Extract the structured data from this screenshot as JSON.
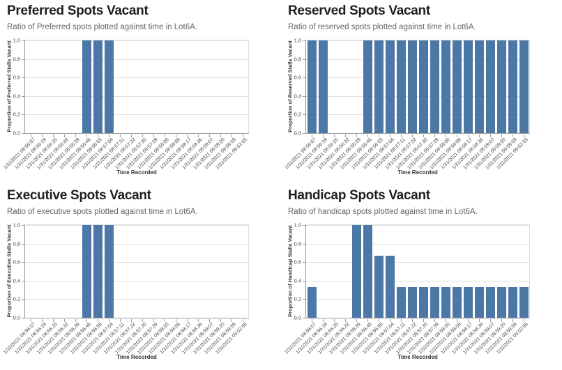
{
  "colors": {
    "bar": "#4c78a8",
    "grid": "#e2e2e2",
    "axis": "#999999"
  },
  "xlabel": "Time Recorded",
  "chart_data": [
    {
      "type": "bar",
      "title": "Preferred Spots Vacant",
      "subtitle": "Ratio of Preferred spots plotted against time in Lot6A.",
      "xlabel": "Time Recorded",
      "ylabel": "Proportion of Preferred Stalls Vacant",
      "ylim": [
        0,
        1
      ],
      "grid": true,
      "legend": false,
      "yticks": [
        "1.0",
        "0.8",
        "0.6",
        "0.4",
        "0.2",
        "0.0"
      ],
      "categories": [
        "1/31/2021 08:56:07",
        "1/31/2021 08:56:18",
        "1/31/2021 08:56:25",
        "1/31/2021 08:56:32",
        "1/31/2021 08:56:39",
        "1/31/2021 08:56:46",
        "1/31/2021 08:56:55",
        "1/31/2021 08:57:04",
        "1/31/2021 08:57:11",
        "1/31/2021 08:57:22",
        "1/31/2021 08:57:30",
        "1/31/2021 08:57:39",
        "1/31/2021 08:58:00",
        "1/31/2021 08:58:08",
        "1/31/2021 08:58:17",
        "1/31/2021 08:58:36",
        "1/31/2021 08:59:07",
        "1/31/2021 08:59:20",
        "1/31/2021 08:59:59",
        "1/31/2021 09:02:55"
      ],
      "values": [
        0,
        0,
        0,
        0,
        0,
        1,
        1,
        1,
        0,
        0,
        0,
        0,
        0,
        0,
        0,
        0,
        0,
        0,
        0,
        0
      ]
    },
    {
      "type": "bar",
      "title": "Reserved Spots Vacant",
      "subtitle": "Ratio of reserved spots plotted against time in Lot6A.",
      "xlabel": "Time Recorded",
      "ylabel": "Proportion of Reserved Stalls Vacant",
      "ylim": [
        0,
        1
      ],
      "grid": true,
      "legend": false,
      "yticks": [
        "1.0",
        "0.8",
        "0.6",
        "0.4",
        "0.2",
        "0.0"
      ],
      "categories": [
        "1/31/2021 08:56:07",
        "1/31/2021 08:56:18",
        "1/31/2021 08:56:25",
        "1/31/2021 08:56:32",
        "1/31/2021 08:56:39",
        "1/31/2021 08:56:46",
        "1/31/2021 08:56:55",
        "1/31/2021 08:57:04",
        "1/31/2021 08:57:11",
        "1/31/2021 08:57:22",
        "1/31/2021 08:57:30",
        "1/31/2021 08:57:39",
        "1/31/2021 08:58:00",
        "1/31/2021 08:58:08",
        "1/31/2021 08:58:17",
        "1/31/2021 08:58:36",
        "1/31/2021 08:59:07",
        "1/31/2021 08:59:20",
        "1/31/2021 08:59:59",
        "1/31/2021 09:02:55"
      ],
      "values": [
        1,
        1,
        0,
        0,
        0,
        1,
        1,
        1,
        1,
        1,
        1,
        1,
        1,
        1,
        1,
        1,
        1,
        1,
        1,
        1
      ]
    },
    {
      "type": "bar",
      "title": "Executive Spots Vacant",
      "subtitle": "Ratio of executive spots plotted against time in Lot6A.",
      "xlabel": "Time Recorded",
      "ylabel": "Proportion of Executive Stalls Vacant",
      "ylim": [
        0,
        1
      ],
      "grid": true,
      "legend": false,
      "yticks": [
        "1.0",
        "0.8",
        "0.6",
        "0.4",
        "0.2",
        "0.0"
      ],
      "categories": [
        "1/31/2021 08:56:07",
        "1/31/2021 08:56:18",
        "1/31/2021 08:56:25",
        "1/31/2021 08:56:32",
        "1/31/2021 08:56:39",
        "1/31/2021 08:56:46",
        "1/31/2021 08:56:55",
        "1/31/2021 08:57:04",
        "1/31/2021 08:57:11",
        "1/31/2021 08:57:22",
        "1/31/2021 08:57:30",
        "1/31/2021 08:57:39",
        "1/31/2021 08:58:00",
        "1/31/2021 08:58:08",
        "1/31/2021 08:58:17",
        "1/31/2021 08:58:36",
        "1/31/2021 08:59:07",
        "1/31/2021 08:59:20",
        "1/31/2021 08:59:59",
        "1/31/2021 09:02:55"
      ],
      "values": [
        0,
        0,
        0,
        0,
        0,
        1,
        1,
        1,
        0,
        0,
        0,
        0,
        0,
        0,
        0,
        0,
        0,
        0,
        0,
        0
      ]
    },
    {
      "type": "bar",
      "title": "Handicap Spots Vacant",
      "subtitle": "Ratio of handicap spots plotted against time in Lot6A.",
      "xlabel": "Time Recorded",
      "ylabel": "Proportion of Handicap Stalls Vacant",
      "ylim": [
        0,
        1
      ],
      "grid": true,
      "legend": false,
      "yticks": [
        "1.0",
        "0.8",
        "0.6",
        "0.4",
        "0.2",
        "0.0"
      ],
      "categories": [
        "1/31/2021 08:56:07",
        "1/31/2021 08:56:18",
        "1/31/2021 08:56:25",
        "1/31/2021 08:56:32",
        "1/31/2021 08:56:39",
        "1/31/2021 08:56:46",
        "1/31/2021 08:56:55",
        "1/31/2021 08:57:04",
        "1/31/2021 08:57:11",
        "1/31/2021 08:57:22",
        "1/31/2021 08:57:30",
        "1/31/2021 08:57:39",
        "1/31/2021 08:58:00",
        "1/31/2021 08:58:08",
        "1/31/2021 08:58:17",
        "1/31/2021 08:58:36",
        "1/31/2021 08:59:07",
        "1/31/2021 08:59:20",
        "1/31/2021 08:59:59",
        "1/31/2021 09:02:55"
      ],
      "values": [
        0.33,
        0,
        0,
        0,
        1,
        1,
        0.67,
        0.67,
        0.33,
        0.33,
        0.33,
        0.33,
        0.33,
        0.33,
        0.33,
        0.33,
        0.33,
        0.33,
        0.33,
        0.33
      ]
    }
  ]
}
